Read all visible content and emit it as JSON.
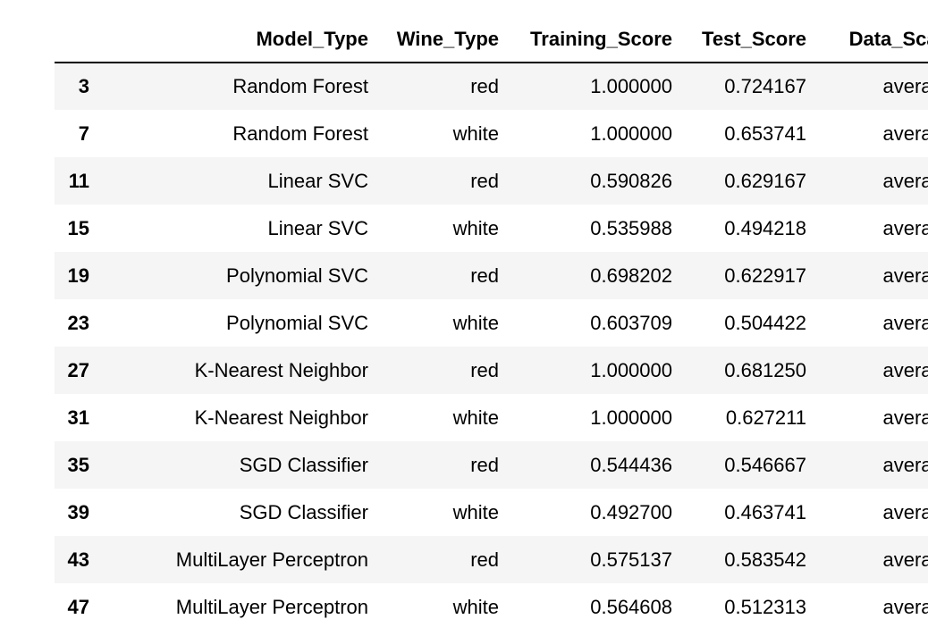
{
  "table": {
    "columns": [
      "",
      "Model_Type",
      "Wine_Type",
      "Training_Score",
      "Test_Score",
      "Data_Scale"
    ],
    "rows": [
      {
        "index": "3",
        "model": "Random Forest",
        "wine": "red",
        "train": "1.000000",
        "test": "0.724167",
        "scale": "average"
      },
      {
        "index": "7",
        "model": "Random Forest",
        "wine": "white",
        "train": "1.000000",
        "test": "0.653741",
        "scale": "average"
      },
      {
        "index": "11",
        "model": "Linear SVC",
        "wine": "red",
        "train": "0.590826",
        "test": "0.629167",
        "scale": "average"
      },
      {
        "index": "15",
        "model": "Linear SVC",
        "wine": "white",
        "train": "0.535988",
        "test": "0.494218",
        "scale": "average"
      },
      {
        "index": "19",
        "model": "Polynomial SVC",
        "wine": "red",
        "train": "0.698202",
        "test": "0.622917",
        "scale": "average"
      },
      {
        "index": "23",
        "model": "Polynomial SVC",
        "wine": "white",
        "train": "0.603709",
        "test": "0.504422",
        "scale": "average"
      },
      {
        "index": "27",
        "model": "K-Nearest Neighbor",
        "wine": "red",
        "train": "1.000000",
        "test": "0.681250",
        "scale": "average"
      },
      {
        "index": "31",
        "model": "K-Nearest Neighbor",
        "wine": "white",
        "train": "1.000000",
        "test": "0.627211",
        "scale": "average"
      },
      {
        "index": "35",
        "model": "SGD Classifier",
        "wine": "red",
        "train": "0.544436",
        "test": "0.546667",
        "scale": "average"
      },
      {
        "index": "39",
        "model": "SGD Classifier",
        "wine": "white",
        "train": "0.492700",
        "test": "0.463741",
        "scale": "average"
      },
      {
        "index": "43",
        "model": "MultiLayer Perceptron",
        "wine": "red",
        "train": "0.575137",
        "test": "0.583542",
        "scale": "average"
      },
      {
        "index": "47",
        "model": "MultiLayer Perceptron",
        "wine": "white",
        "train": "0.564608",
        "test": "0.512313",
        "scale": "average"
      }
    ]
  }
}
